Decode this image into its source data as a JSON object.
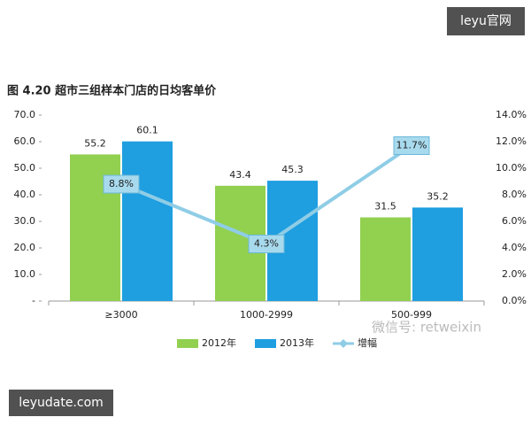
{
  "chart_data": {
    "type": "bar",
    "title": "图 4.20 超市三组样本门店的日均客单价",
    "categories": [
      "≥3000",
      "1000-2999",
      "500-999"
    ],
    "series": [
      {
        "name": "2012年",
        "color": "#92d050",
        "values": [
          55.2,
          43.4,
          31.5
        ]
      },
      {
        "name": "2013年",
        "color": "#1f9ee0",
        "values": [
          60.1,
          45.3,
          35.2
        ]
      },
      {
        "name": "增幅",
        "type": "line",
        "axis": "y2",
        "color": "#8fcde6",
        "values": [
          8.8,
          4.3,
          11.7
        ],
        "value_labels": [
          "8.8%",
          "4.3%",
          "11.7%"
        ]
      }
    ],
    "ylim": [
      0,
      70
    ],
    "yticks": [
      {
        "value": 0,
        "label": "-"
      },
      {
        "value": 10,
        "label": "10.0"
      },
      {
        "value": 20,
        "label": "20.0"
      },
      {
        "value": 30,
        "label": "30.0"
      },
      {
        "value": 40,
        "label": "40.0"
      },
      {
        "value": 50,
        "label": "50.0"
      },
      {
        "value": 60,
        "label": "60.0"
      },
      {
        "value": 70,
        "label": "70.0"
      }
    ],
    "y2lim": [
      0,
      14
    ],
    "y2ticks": [
      {
        "value": 0,
        "label": "0.0%"
      },
      {
        "value": 2,
        "label": "2.0%"
      },
      {
        "value": 4,
        "label": "4.0%"
      },
      {
        "value": 6,
        "label": "6.0%"
      },
      {
        "value": 8,
        "label": "8.0%"
      },
      {
        "value": 10,
        "label": "10.0%"
      },
      {
        "value": 12,
        "label": "12.0%"
      },
      {
        "value": 14,
        "label": "14.0%"
      }
    ],
    "grid": false
  },
  "watermarks": {
    "top_right": "leyu官网",
    "bottom_left": "leyudate.com",
    "wechat": "微信号: retweixin"
  }
}
